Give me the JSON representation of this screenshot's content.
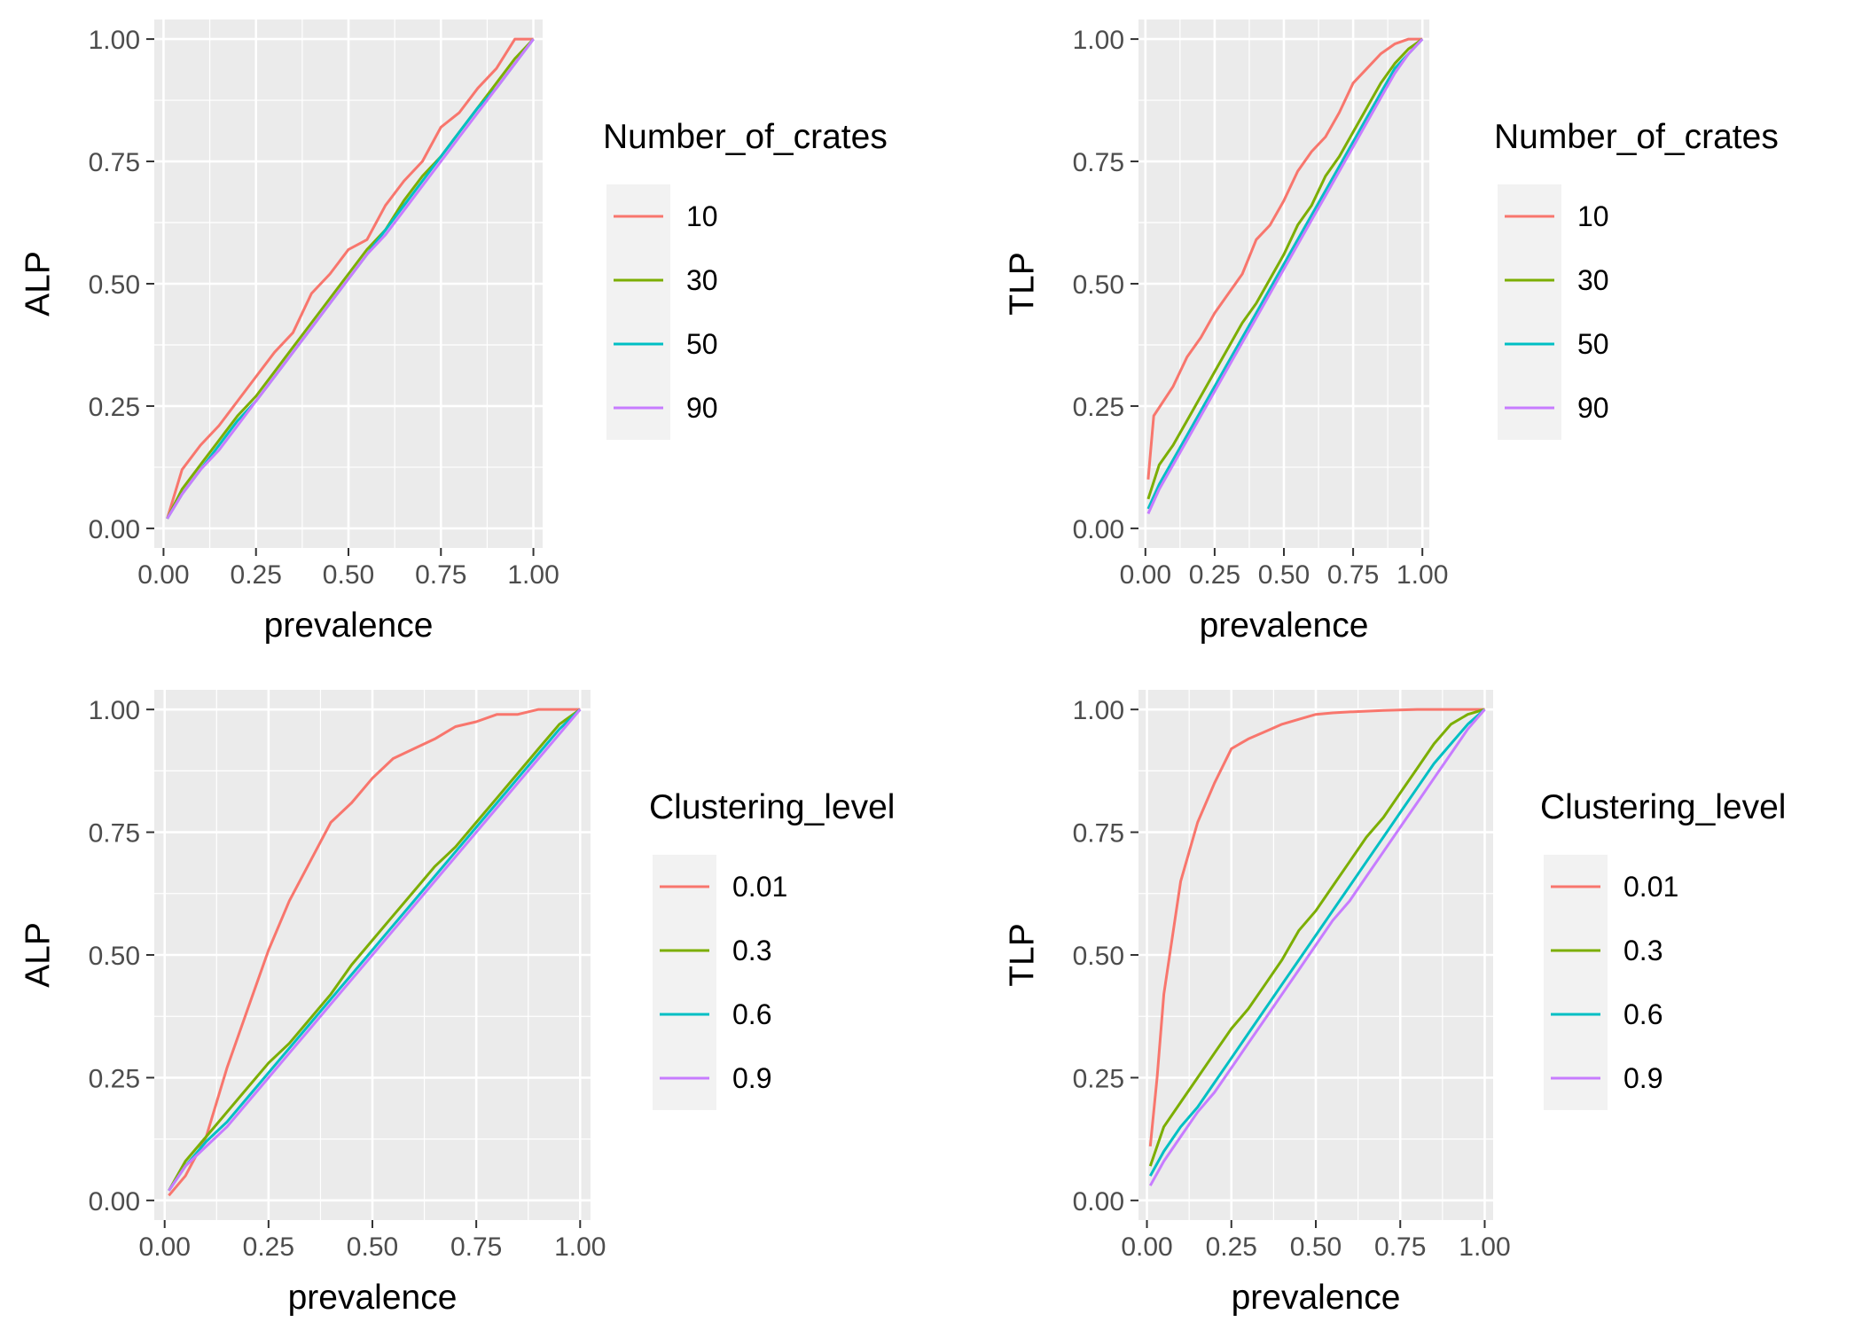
{
  "colors": {
    "panel_bg": "#ebebeb",
    "grid_major": "#ffffff",
    "legend_key_bg": "#f2f2f2",
    "series": [
      "#f8766d",
      "#7cae00",
      "#00bfc4",
      "#c77cff"
    ]
  },
  "chart_data": [
    {
      "type": "line",
      "title": "",
      "xlabel": "prevalence",
      "ylabel": "ALP",
      "xlim": [
        -0.025,
        1.025
      ],
      "ylim": [
        -0.04,
        1.04
      ],
      "x_ticks": [
        "0.00",
        "0.25",
        "0.50",
        "0.75",
        "1.00"
      ],
      "y_ticks": [
        "0.00",
        "0.25",
        "0.50",
        "0.75",
        "1.00"
      ],
      "legend": {
        "title": "Number_of_crates",
        "position": "right"
      },
      "grid": true,
      "series": [
        {
          "name": "10",
          "x": [
            0.01,
            0.05,
            0.1,
            0.15,
            0.2,
            0.25,
            0.3,
            0.35,
            0.4,
            0.45,
            0.5,
            0.55,
            0.6,
            0.65,
            0.7,
            0.75,
            0.8,
            0.85,
            0.9,
            0.95,
            1.0
          ],
          "y": [
            0.02,
            0.12,
            0.17,
            0.21,
            0.26,
            0.31,
            0.36,
            0.4,
            0.48,
            0.52,
            0.57,
            0.59,
            0.66,
            0.71,
            0.75,
            0.82,
            0.85,
            0.9,
            0.94,
            1.0,
            1.0
          ]
        },
        {
          "name": "30",
          "x": [
            0.01,
            0.05,
            0.1,
            0.15,
            0.2,
            0.25,
            0.3,
            0.35,
            0.4,
            0.45,
            0.5,
            0.55,
            0.6,
            0.65,
            0.7,
            0.75,
            0.8,
            0.85,
            0.9,
            0.95,
            1.0
          ],
          "y": [
            0.02,
            0.08,
            0.13,
            0.18,
            0.23,
            0.27,
            0.32,
            0.37,
            0.42,
            0.47,
            0.52,
            0.57,
            0.61,
            0.67,
            0.72,
            0.76,
            0.81,
            0.86,
            0.91,
            0.96,
            1.0
          ]
        },
        {
          "name": "50",
          "x": [
            0.01,
            0.05,
            0.1,
            0.15,
            0.2,
            0.25,
            0.3,
            0.35,
            0.4,
            0.45,
            0.5,
            0.55,
            0.6,
            0.65,
            0.7,
            0.75,
            0.8,
            0.85,
            0.9,
            0.95,
            1.0
          ],
          "y": [
            0.02,
            0.07,
            0.12,
            0.17,
            0.22,
            0.26,
            0.31,
            0.36,
            0.41,
            0.46,
            0.51,
            0.56,
            0.61,
            0.66,
            0.71,
            0.76,
            0.81,
            0.86,
            0.9,
            0.95,
            1.0
          ]
        },
        {
          "name": "90",
          "x": [
            0.01,
            0.05,
            0.1,
            0.15,
            0.2,
            0.25,
            0.3,
            0.35,
            0.4,
            0.45,
            0.5,
            0.55,
            0.6,
            0.65,
            0.7,
            0.75,
            0.8,
            0.85,
            0.9,
            0.95,
            1.0
          ],
          "y": [
            0.02,
            0.07,
            0.12,
            0.16,
            0.21,
            0.26,
            0.31,
            0.36,
            0.41,
            0.46,
            0.51,
            0.56,
            0.6,
            0.65,
            0.7,
            0.75,
            0.8,
            0.85,
            0.9,
            0.95,
            1.0
          ]
        }
      ]
    },
    {
      "type": "line",
      "title": "",
      "xlabel": "prevalence",
      "ylabel": "TLP",
      "xlim": [
        -0.025,
        1.025
      ],
      "ylim": [
        -0.04,
        1.04
      ],
      "x_ticks": [
        "0.00",
        "0.25",
        "0.50",
        "0.75",
        "1.00"
      ],
      "y_ticks": [
        "0.00",
        "0.25",
        "0.50",
        "0.75",
        "1.00"
      ],
      "legend": {
        "title": "Number_of_crates",
        "position": "right"
      },
      "grid": true,
      "series": [
        {
          "name": "10",
          "x": [
            0.01,
            0.03,
            0.1,
            0.15,
            0.2,
            0.25,
            0.3,
            0.35,
            0.4,
            0.45,
            0.5,
            0.55,
            0.6,
            0.65,
            0.7,
            0.75,
            0.8,
            0.85,
            0.9,
            0.95,
            1.0
          ],
          "y": [
            0.1,
            0.23,
            0.29,
            0.35,
            0.39,
            0.44,
            0.48,
            0.52,
            0.59,
            0.62,
            0.67,
            0.73,
            0.77,
            0.8,
            0.85,
            0.91,
            0.94,
            0.97,
            0.99,
            1.0,
            1.0
          ]
        },
        {
          "name": "30",
          "x": [
            0.01,
            0.05,
            0.1,
            0.15,
            0.2,
            0.25,
            0.3,
            0.35,
            0.4,
            0.45,
            0.5,
            0.55,
            0.6,
            0.65,
            0.7,
            0.75,
            0.8,
            0.85,
            0.9,
            0.95,
            1.0
          ],
          "y": [
            0.06,
            0.13,
            0.17,
            0.22,
            0.27,
            0.32,
            0.37,
            0.42,
            0.46,
            0.51,
            0.56,
            0.62,
            0.66,
            0.72,
            0.76,
            0.81,
            0.86,
            0.91,
            0.95,
            0.98,
            1.0
          ]
        },
        {
          "name": "50",
          "x": [
            0.01,
            0.05,
            0.1,
            0.15,
            0.2,
            0.25,
            0.3,
            0.35,
            0.4,
            0.45,
            0.5,
            0.55,
            0.6,
            0.65,
            0.7,
            0.75,
            0.8,
            0.85,
            0.9,
            0.95,
            1.0
          ],
          "y": [
            0.04,
            0.09,
            0.14,
            0.19,
            0.24,
            0.29,
            0.34,
            0.39,
            0.44,
            0.49,
            0.54,
            0.59,
            0.64,
            0.69,
            0.74,
            0.79,
            0.84,
            0.89,
            0.94,
            0.97,
            1.0
          ]
        },
        {
          "name": "90",
          "x": [
            0.01,
            0.05,
            0.1,
            0.15,
            0.2,
            0.25,
            0.3,
            0.35,
            0.4,
            0.45,
            0.5,
            0.55,
            0.6,
            0.65,
            0.7,
            0.75,
            0.8,
            0.85,
            0.9,
            0.95,
            1.0
          ],
          "y": [
            0.03,
            0.08,
            0.13,
            0.18,
            0.23,
            0.28,
            0.33,
            0.38,
            0.43,
            0.48,
            0.53,
            0.58,
            0.63,
            0.68,
            0.73,
            0.78,
            0.83,
            0.88,
            0.93,
            0.97,
            1.0
          ]
        }
      ]
    },
    {
      "type": "line",
      "title": "",
      "xlabel": "prevalence",
      "ylabel": "ALP",
      "xlim": [
        -0.025,
        1.025
      ],
      "ylim": [
        -0.04,
        1.04
      ],
      "x_ticks": [
        "0.00",
        "0.25",
        "0.50",
        "0.75",
        "1.00"
      ],
      "y_ticks": [
        "0.00",
        "0.25",
        "0.50",
        "0.75",
        "1.00"
      ],
      "legend": {
        "title": "Clustering_level",
        "position": "right"
      },
      "grid": true,
      "series": [
        {
          "name": "0.01",
          "x": [
            0.01,
            0.05,
            0.1,
            0.15,
            0.2,
            0.25,
            0.3,
            0.35,
            0.4,
            0.45,
            0.5,
            0.55,
            0.6,
            0.65,
            0.7,
            0.75,
            0.8,
            0.85,
            0.9,
            0.95,
            1.0
          ],
          "y": [
            0.01,
            0.05,
            0.13,
            0.27,
            0.39,
            0.51,
            0.61,
            0.69,
            0.77,
            0.81,
            0.86,
            0.9,
            0.92,
            0.94,
            0.965,
            0.975,
            0.99,
            0.99,
            1.0,
            1.0,
            1.0
          ]
        },
        {
          "name": "0.3",
          "x": [
            0.01,
            0.05,
            0.1,
            0.15,
            0.2,
            0.25,
            0.3,
            0.35,
            0.4,
            0.45,
            0.5,
            0.55,
            0.6,
            0.65,
            0.7,
            0.75,
            0.8,
            0.85,
            0.9,
            0.95,
            1.0
          ],
          "y": [
            0.02,
            0.08,
            0.13,
            0.18,
            0.23,
            0.28,
            0.32,
            0.37,
            0.42,
            0.48,
            0.53,
            0.58,
            0.63,
            0.68,
            0.72,
            0.77,
            0.82,
            0.87,
            0.92,
            0.97,
            1.0
          ]
        },
        {
          "name": "0.6",
          "x": [
            0.01,
            0.05,
            0.1,
            0.15,
            0.2,
            0.25,
            0.3,
            0.35,
            0.4,
            0.45,
            0.5,
            0.55,
            0.6,
            0.65,
            0.7,
            0.75,
            0.8,
            0.85,
            0.9,
            0.95,
            1.0
          ],
          "y": [
            0.02,
            0.07,
            0.12,
            0.16,
            0.21,
            0.26,
            0.31,
            0.36,
            0.41,
            0.46,
            0.51,
            0.56,
            0.61,
            0.66,
            0.71,
            0.76,
            0.81,
            0.86,
            0.91,
            0.96,
            1.0
          ]
        },
        {
          "name": "0.9",
          "x": [
            0.01,
            0.05,
            0.1,
            0.15,
            0.2,
            0.25,
            0.3,
            0.35,
            0.4,
            0.45,
            0.5,
            0.55,
            0.6,
            0.65,
            0.7,
            0.75,
            0.8,
            0.85,
            0.9,
            0.95,
            1.0
          ],
          "y": [
            0.02,
            0.07,
            0.11,
            0.15,
            0.2,
            0.25,
            0.3,
            0.35,
            0.4,
            0.45,
            0.5,
            0.55,
            0.6,
            0.65,
            0.7,
            0.75,
            0.8,
            0.85,
            0.9,
            0.95,
            1.0
          ]
        }
      ]
    },
    {
      "type": "line",
      "title": "",
      "xlabel": "prevalence",
      "ylabel": "TLP",
      "xlim": [
        -0.025,
        1.025
      ],
      "ylim": [
        -0.04,
        1.04
      ],
      "x_ticks": [
        "0.00",
        "0.25",
        "0.50",
        "0.75",
        "1.00"
      ],
      "y_ticks": [
        "0.00",
        "0.25",
        "0.50",
        "0.75",
        "1.00"
      ],
      "legend": {
        "title": "Clustering_level",
        "position": "right"
      },
      "grid": true,
      "series": [
        {
          "name": "0.01",
          "x": [
            0.01,
            0.03,
            0.05,
            0.1,
            0.15,
            0.2,
            0.25,
            0.3,
            0.35,
            0.4,
            0.45,
            0.5,
            0.55,
            0.6,
            0.7,
            0.8,
            0.9,
            1.0
          ],
          "y": [
            0.11,
            0.25,
            0.42,
            0.65,
            0.77,
            0.85,
            0.92,
            0.94,
            0.955,
            0.97,
            0.98,
            0.99,
            0.993,
            0.995,
            0.998,
            1.0,
            1.0,
            1.0
          ]
        },
        {
          "name": "0.3",
          "x": [
            0.01,
            0.05,
            0.1,
            0.15,
            0.2,
            0.25,
            0.3,
            0.35,
            0.4,
            0.45,
            0.5,
            0.55,
            0.6,
            0.65,
            0.7,
            0.75,
            0.8,
            0.85,
            0.9,
            0.95,
            1.0
          ],
          "y": [
            0.07,
            0.15,
            0.2,
            0.25,
            0.3,
            0.35,
            0.39,
            0.44,
            0.49,
            0.55,
            0.59,
            0.64,
            0.69,
            0.74,
            0.78,
            0.83,
            0.88,
            0.93,
            0.97,
            0.99,
            1.0
          ]
        },
        {
          "name": "0.6",
          "x": [
            0.01,
            0.05,
            0.1,
            0.15,
            0.2,
            0.25,
            0.3,
            0.35,
            0.4,
            0.45,
            0.5,
            0.55,
            0.6,
            0.65,
            0.7,
            0.75,
            0.8,
            0.85,
            0.9,
            0.95,
            1.0
          ],
          "y": [
            0.05,
            0.1,
            0.15,
            0.19,
            0.24,
            0.29,
            0.34,
            0.39,
            0.44,
            0.49,
            0.54,
            0.59,
            0.64,
            0.69,
            0.74,
            0.79,
            0.84,
            0.89,
            0.93,
            0.97,
            1.0
          ]
        },
        {
          "name": "0.9",
          "x": [
            0.01,
            0.05,
            0.1,
            0.15,
            0.2,
            0.25,
            0.3,
            0.35,
            0.4,
            0.45,
            0.5,
            0.55,
            0.6,
            0.65,
            0.7,
            0.75,
            0.8,
            0.85,
            0.9,
            0.95,
            1.0
          ],
          "y": [
            0.03,
            0.08,
            0.13,
            0.18,
            0.22,
            0.27,
            0.32,
            0.37,
            0.42,
            0.47,
            0.52,
            0.57,
            0.61,
            0.66,
            0.71,
            0.76,
            0.81,
            0.86,
            0.91,
            0.96,
            1.0
          ]
        }
      ]
    }
  ]
}
